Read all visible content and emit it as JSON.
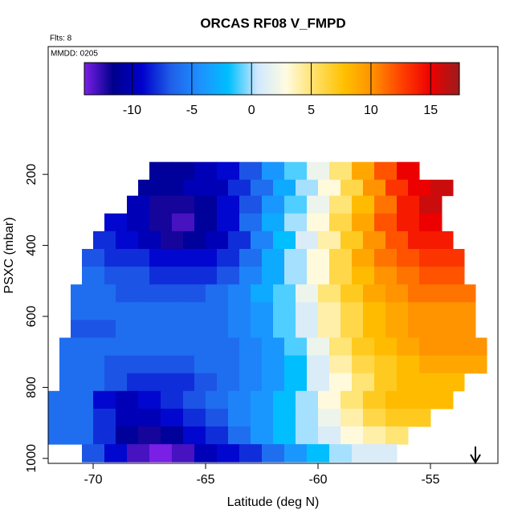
{
  "chart_data": {
    "type": "heatmap",
    "title": "ORCAS RF08 V_FMPD",
    "subtitle": "Flts: 8",
    "annotation": "MMDD: 0205",
    "x_label": "Latitude (deg N)",
    "y_label": "PSXC (mbar)",
    "xlim": [
      -72,
      -52
    ],
    "xticks": [
      -70,
      -65,
      -60,
      -55
    ],
    "ylim": [
      1014,
      -160
    ],
    "yticks": [
      200,
      400,
      600,
      800,
      1000
    ],
    "zlim": [
      -14,
      17.4
    ],
    "zticks": [
      -10,
      -5,
      0,
      5,
      10,
      15
    ],
    "colormap": [
      "#7a1fe6",
      "#00008b",
      "#0000cd",
      "#1f5fe8",
      "#1e90ff",
      "#00bfff",
      "#cfe8ff",
      "#fffbe0",
      "#ffe066",
      "#ffc000",
      "#ff9000",
      "#ff4000",
      "#ee0000",
      "#9b1c1c"
    ],
    "rows": [
      {
        "p": [
          165,
          215
        ],
        "lat": [
          -67.5,
          -55.5
        ],
        "values": [
          -11,
          -11,
          -10,
          -9,
          -7,
          -4,
          -1,
          2,
          5,
          9,
          12,
          15
        ]
      },
      {
        "p": [
          215,
          260
        ],
        "lat": [
          -68,
          -54
        ],
        "values": [
          -11,
          -11,
          -10,
          -10,
          -8,
          -6,
          -3,
          0,
          3,
          6,
          10,
          13,
          15,
          16
        ]
      },
      {
        "p": [
          260,
          310
        ],
        "lat": [
          -68.5,
          -54.5
        ],
        "values": [
          -10,
          -12,
          -12,
          -11,
          -9,
          -7,
          -4,
          -1,
          2,
          5,
          8,
          11,
          14,
          16
        ]
      },
      {
        "p": [
          310,
          360
        ],
        "lat": [
          -69.5,
          -54.5
        ],
        "values": [
          -9,
          -10,
          -12,
          -13,
          -11,
          -9,
          -6,
          -3,
          0,
          3,
          6,
          9,
          12,
          14,
          15
        ]
      },
      {
        "p": [
          360,
          410
        ],
        "lat": [
          -70,
          -54
        ],
        "values": [
          -8,
          -9,
          -10,
          -12,
          -11,
          -10,
          -8,
          -5,
          -2,
          1,
          4,
          7,
          10,
          12,
          14,
          14
        ]
      },
      {
        "p": [
          410,
          460
        ],
        "lat": [
          -70.5,
          -53.5
        ],
        "values": [
          -7,
          -8,
          -8,
          -9,
          -9,
          -9,
          -8,
          -6,
          -3,
          0,
          3,
          6,
          9,
          11,
          12,
          13,
          13
        ]
      },
      {
        "p": [
          460,
          510
        ],
        "lat": [
          -70.5,
          -53.5
        ],
        "values": [
          -6,
          -7,
          -7,
          -8,
          -8,
          -8,
          -7,
          -5,
          -3,
          0,
          3,
          6,
          8,
          10,
          11,
          12,
          12
        ]
      },
      {
        "p": [
          510,
          560
        ],
        "lat": [
          -71,
          -53
        ],
        "values": [
          -6,
          -6,
          -7,
          -7,
          -7,
          -7,
          -6,
          -5,
          -3,
          -1,
          2,
          5,
          7,
          9,
          10,
          11,
          11,
          11
        ]
      },
      {
        "p": [
          560,
          610
        ],
        "lat": [
          -71,
          -53
        ],
        "values": [
          -6,
          -6,
          -6,
          -6,
          -6,
          -6,
          -6,
          -5,
          -4,
          -1,
          1,
          4,
          6,
          8,
          9,
          10,
          10,
          10
        ]
      },
      {
        "p": [
          610,
          660
        ],
        "lat": [
          -71,
          -53
        ],
        "values": [
          -7,
          -7,
          -6,
          -6,
          -6,
          -6,
          -6,
          -5,
          -4,
          -1,
          1,
          4,
          6,
          8,
          9,
          10,
          10,
          10
        ]
      },
      {
        "p": [
          660,
          710
        ],
        "lat": [
          -71.5,
          -52.5
        ],
        "values": [
          -6,
          -6,
          -6,
          -6,
          -6,
          -6,
          -6,
          -6,
          -5,
          -4,
          -1,
          2,
          5,
          7,
          8,
          9,
          10,
          10,
          10
        ]
      },
      {
        "p": [
          710,
          760
        ],
        "lat": [
          -71.5,
          -52.5
        ],
        "values": [
          -6,
          -6,
          -7,
          -7,
          -7,
          -7,
          -6,
          -6,
          -5,
          -4,
          -2,
          1,
          4,
          6,
          7,
          8,
          9,
          9,
          9
        ]
      },
      {
        "p": [
          760,
          810
        ],
        "lat": [
          -71.5,
          -53.5
        ],
        "values": [
          -6,
          -6,
          -7,
          -8,
          -8,
          -8,
          -7,
          -6,
          -5,
          -4,
          -2,
          1,
          3,
          5,
          7,
          8,
          8,
          8
        ]
      },
      {
        "p": [
          810,
          860
        ],
        "lat": [
          -72,
          -54
        ],
        "values": [
          -6,
          -6,
          -9,
          -10,
          -9,
          -8,
          -7,
          -6,
          -5,
          -4,
          -2,
          0,
          3,
          5,
          7,
          8,
          8,
          8
        ]
      },
      {
        "p": [
          860,
          910
        ],
        "lat": [
          -72,
          -55
        ],
        "values": [
          -6,
          -6,
          -8,
          -10,
          -10,
          -9,
          -8,
          -7,
          -5,
          -4,
          -2,
          0,
          2,
          4,
          6,
          7,
          7
        ]
      },
      {
        "p": [
          910,
          960
        ],
        "lat": [
          -72,
          -56
        ],
        "values": [
          -6,
          -6,
          -8,
          -11,
          -12,
          -11,
          -9,
          -8,
          -6,
          -4,
          -2,
          0,
          1,
          3,
          4,
          5
        ]
      },
      {
        "p": [
          960,
          1010
        ],
        "lat": [
          -70.5,
          -56.5
        ],
        "values": [
          -7,
          -9,
          -13,
          -14,
          -13,
          -10,
          -9,
          -8,
          -6,
          -4,
          -2,
          0,
          1,
          1
        ]
      }
    ]
  }
}
